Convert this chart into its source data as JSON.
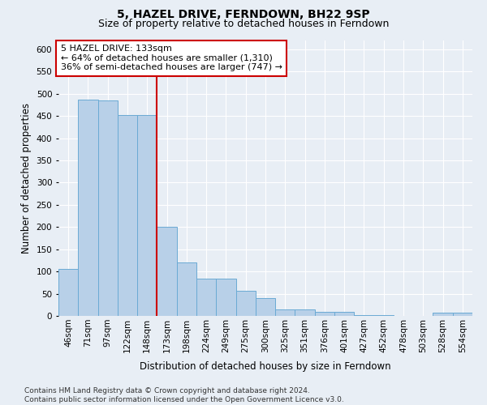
{
  "title": "5, HAZEL DRIVE, FERNDOWN, BH22 9SP",
  "subtitle": "Size of property relative to detached houses in Ferndown",
  "xlabel": "Distribution of detached houses by size in Ferndown",
  "ylabel": "Number of detached properties",
  "categories": [
    "46sqm",
    "71sqm",
    "97sqm",
    "122sqm",
    "148sqm",
    "173sqm",
    "198sqm",
    "224sqm",
    "249sqm",
    "275sqm",
    "300sqm",
    "325sqm",
    "351sqm",
    "376sqm",
    "401sqm",
    "427sqm",
    "452sqm",
    "478sqm",
    "503sqm",
    "528sqm",
    "554sqm"
  ],
  "values": [
    105,
    487,
    485,
    453,
    453,
    201,
    120,
    83,
    83,
    57,
    40,
    15,
    15,
    10,
    10,
    2,
    2,
    0,
    0,
    7,
    7
  ],
  "bar_color": "#b8d0e8",
  "bar_edge_color": "#6aaad4",
  "bar_edge_width": 0.7,
  "vline_x": 4.5,
  "vline_color": "#cc0000",
  "annotation_text": "5 HAZEL DRIVE: 133sqm\n← 64% of detached houses are smaller (1,310)\n36% of semi-detached houses are larger (747) →",
  "annotation_box_color": "#ffffff",
  "annotation_box_edge_color": "#cc0000",
  "ylim": [
    0,
    620
  ],
  "yticks": [
    0,
    50,
    100,
    150,
    200,
    250,
    300,
    350,
    400,
    450,
    500,
    550,
    600
  ],
  "background_color": "#e8eef5",
  "plot_bg_color": "#e8eef5",
  "footer_text": "Contains HM Land Registry data © Crown copyright and database right 2024.\nContains public sector information licensed under the Open Government Licence v3.0.",
  "title_fontsize": 10,
  "subtitle_fontsize": 9,
  "xlabel_fontsize": 8.5,
  "ylabel_fontsize": 8.5,
  "tick_fontsize": 7.5,
  "annotation_fontsize": 8,
  "footer_fontsize": 6.5
}
